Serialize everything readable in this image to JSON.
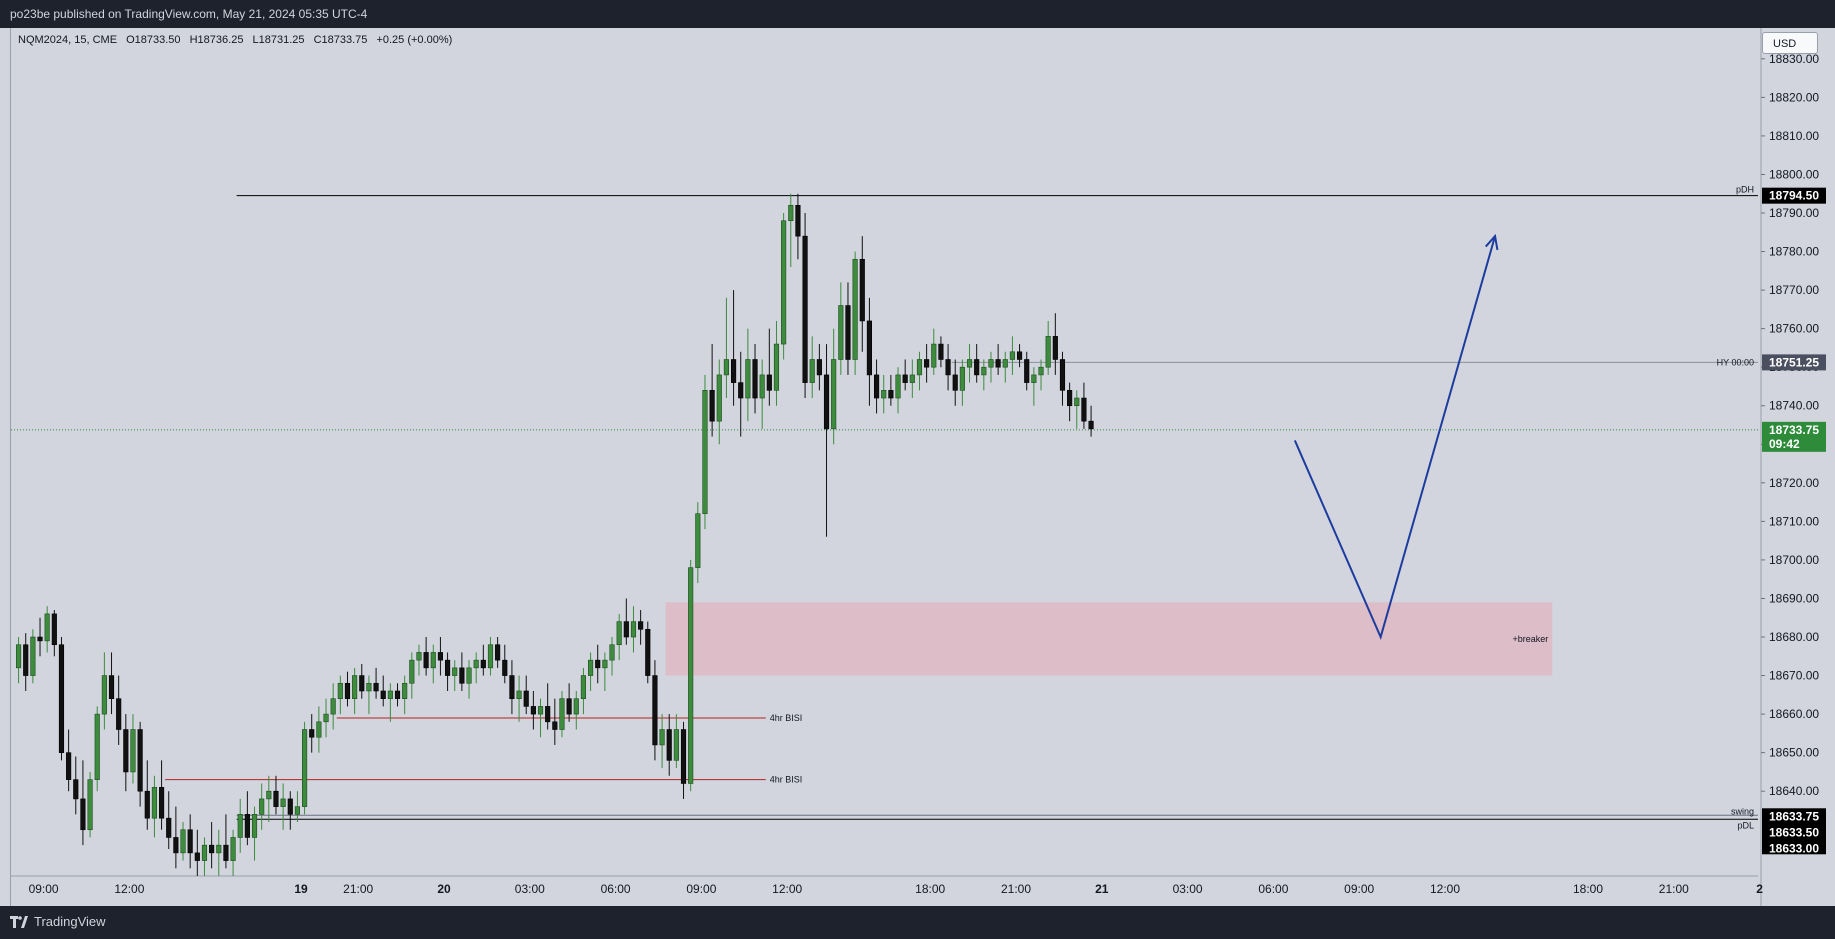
{
  "header": {
    "publish_text": "po23be published on TradingView.com, May 21, 2024 05:35 UTC-4"
  },
  "legend": {
    "symbol": "NQM2024, 15, CME",
    "open": "O18733.50",
    "high": "H18736.25",
    "low": "L18731.25",
    "close": "C18733.75",
    "change": "+0.25 (+0.00%)"
  },
  "currency_button": "USD",
  "footer": {
    "brand": "TradingView"
  },
  "colors": {
    "up": "#3d8b3d",
    "down": "#111111",
    "zone": "#e5a9b4",
    "arrow": "#1d3c9e",
    "midnight": "#7b9cf0",
    "last": "#2e8b3a",
    "level": "#b22222"
  },
  "chart_data": {
    "type": "candlestick",
    "symbol": "NQM2024",
    "interval": "15",
    "ylim": [
      18618,
      18838
    ],
    "y_ticks": [
      18640,
      18650,
      18660,
      18670,
      18680,
      18690,
      18700,
      18710,
      18720,
      18730,
      18740,
      18750,
      18760,
      18770,
      18780,
      18790,
      18800,
      18810,
      18820,
      18830
    ],
    "x_ticks": [
      {
        "label": "09:00",
        "bar": 4
      },
      {
        "label": "12:00",
        "bar": 16
      },
      {
        "label": "19",
        "bar": 40
      },
      {
        "label": "21:00",
        "bar": 48
      },
      {
        "label": "20",
        "bar": 60
      },
      {
        "label": "03:00",
        "bar": 72
      },
      {
        "label": "06:00",
        "bar": 84
      },
      {
        "label": "09:00",
        "bar": 96
      },
      {
        "label": "12:00",
        "bar": 108
      },
      {
        "label": "18:00",
        "bar": 128
      },
      {
        "label": "21:00",
        "bar": 140
      },
      {
        "label": "21",
        "bar": 152
      },
      {
        "label": "03:00",
        "bar": 164
      },
      {
        "label": "06:00",
        "bar": 176
      },
      {
        "label": "09:00",
        "bar": 188
      },
      {
        "label": "12:00",
        "bar": 200
      },
      {
        "label": "18:00",
        "bar": 220
      },
      {
        "label": "21:00",
        "bar": 232
      },
      {
        "label": "2",
        "bar": 244
      }
    ],
    "candles": [
      [
        18672,
        18680,
        18668,
        18678
      ],
      [
        18678,
        18681,
        18666,
        18670
      ],
      [
        18670,
        18682,
        18668,
        18680
      ],
      [
        18680,
        18685,
        18675,
        18679
      ],
      [
        18679,
        18688,
        18676,
        18686
      ],
      [
        18686,
        18687,
        18675,
        18678
      ],
      [
        18678,
        18680,
        18648,
        18650
      ],
      [
        18650,
        18656,
        18640,
        18643
      ],
      [
        18643,
        18649,
        18634,
        18638
      ],
      [
        18638,
        18648,
        18626,
        18630
      ],
      [
        18630,
        18645,
        18628,
        18643
      ],
      [
        18643,
        18662,
        18640,
        18660
      ],
      [
        18660,
        18676,
        18656,
        18670
      ],
      [
        18670,
        18676,
        18660,
        18664
      ],
      [
        18664,
        18670,
        18652,
        18656
      ],
      [
        18656,
        18660,
        18640,
        18645
      ],
      [
        18645,
        18660,
        18642,
        18656
      ],
      [
        18656,
        18658,
        18636,
        18640
      ],
      [
        18640,
        18648,
        18630,
        18633
      ],
      [
        18633,
        18644,
        18628,
        18641
      ],
      [
        18641,
        18648,
        18630,
        18633
      ],
      [
        18633,
        18640,
        18625,
        18628
      ],
      [
        18628,
        18636,
        18620,
        18624
      ],
      [
        18624,
        18632,
        18622,
        18630
      ],
      [
        18630,
        18634,
        18620,
        18624
      ],
      [
        18624,
        18630,
        18618,
        18622
      ],
      [
        18622,
        18628,
        18618,
        18626
      ],
      [
        18626,
        18632,
        18620,
        18624
      ],
      [
        18624,
        18630,
        18618,
        18626
      ],
      [
        18626,
        18634,
        18620,
        18622
      ],
      [
        18622,
        18630,
        18618,
        18628
      ],
      [
        18628,
        18638,
        18624,
        18634
      ],
      [
        18634,
        18640,
        18626,
        18628
      ],
      [
        18628,
        18636,
        18622,
        18634
      ],
      [
        18634,
        18642,
        18630,
        18638
      ],
      [
        18638,
        18644,
        18632,
        18640
      ],
      [
        18640,
        18644,
        18634,
        18636
      ],
      [
        18636,
        18642,
        18630,
        18638
      ],
      [
        18638,
        18640,
        18630,
        18634
      ],
      [
        18634,
        18640,
        18632,
        18636
      ],
      [
        18636,
        18658,
        18634,
        18656
      ],
      [
        18656,
        18660,
        18650,
        18654
      ],
      [
        18654,
        18662,
        18650,
        18658
      ],
      [
        18658,
        18664,
        18654,
        18660
      ],
      [
        18660,
        18668,
        18656,
        18664
      ],
      [
        18664,
        18670,
        18660,
        18668
      ],
      [
        18668,
        18671,
        18662,
        18664
      ],
      [
        18664,
        18672,
        18660,
        18670
      ],
      [
        18670,
        18673,
        18664,
        18666
      ],
      [
        18666,
        18670,
        18660,
        18668
      ],
      [
        18668,
        18672,
        18664,
        18666
      ],
      [
        18666,
        18670,
        18662,
        18664
      ],
      [
        18664,
        18668,
        18658,
        18666
      ],
      [
        18666,
        18668,
        18662,
        18664
      ],
      [
        18664,
        18670,
        18660,
        18668
      ],
      [
        18668,
        18676,
        18664,
        18674
      ],
      [
        18674,
        18678,
        18670,
        18676
      ],
      [
        18676,
        18680,
        18670,
        18672
      ],
      [
        18672,
        18678,
        18668,
        18676
      ],
      [
        18676,
        18680,
        18670,
        18674
      ],
      [
        18674,
        18676,
        18666,
        18670
      ],
      [
        18670,
        18674,
        18666,
        18672
      ],
      [
        18672,
        18676,
        18666,
        18668
      ],
      [
        18668,
        18674,
        18664,
        18672
      ],
      [
        18672,
        18676,
        18668,
        18674
      ],
      [
        18674,
        18678,
        18670,
        18672
      ],
      [
        18672,
        18680,
        18670,
        18678
      ],
      [
        18678,
        18680,
        18672,
        18674
      ],
      [
        18674,
        18678,
        18668,
        18670
      ],
      [
        18670,
        18674,
        18660,
        18664
      ],
      [
        18664,
        18670,
        18658,
        18666
      ],
      [
        18666,
        18670,
        18660,
        18662
      ],
      [
        18662,
        18666,
        18656,
        18660
      ],
      [
        18660,
        18664,
        18654,
        18662
      ],
      [
        18662,
        18668,
        18656,
        18658
      ],
      [
        18658,
        18664,
        18652,
        18656
      ],
      [
        18656,
        18666,
        18654,
        18664
      ],
      [
        18664,
        18668,
        18658,
        18660
      ],
      [
        18660,
        18666,
        18656,
        18664
      ],
      [
        18664,
        18672,
        18660,
        18670
      ],
      [
        18670,
        18676,
        18666,
        18674
      ],
      [
        18674,
        18678,
        18668,
        18672
      ],
      [
        18672,
        18676,
        18666,
        18674
      ],
      [
        18674,
        18680,
        18670,
        18678
      ],
      [
        18678,
        18686,
        18674,
        18684
      ],
      [
        18684,
        18690,
        18678,
        18680
      ],
      [
        18680,
        18688,
        18676,
        18684
      ],
      [
        18684,
        18687,
        18678,
        18682
      ],
      [
        18682,
        18684,
        18668,
        18670
      ],
      [
        18670,
        18674,
        18648,
        18652
      ],
      [
        18652,
        18660,
        18646,
        18656
      ],
      [
        18656,
        18660,
        18644,
        18648
      ],
      [
        18648,
        18660,
        18646,
        18656
      ],
      [
        18656,
        18658,
        18638,
        18642
      ],
      [
        18642,
        18700,
        18640,
        18698
      ],
      [
        18698,
        18715,
        18694,
        18712
      ],
      [
        18712,
        18748,
        18708,
        18744
      ],
      [
        18744,
        18756,
        18732,
        18736
      ],
      [
        18736,
        18752,
        18730,
        18748
      ],
      [
        18748,
        18768,
        18742,
        18752
      ],
      [
        18752,
        18770,
        18740,
        18746
      ],
      [
        18746,
        18754,
        18732,
        18742
      ],
      [
        18742,
        18760,
        18736,
        18752
      ],
      [
        18752,
        18756,
        18738,
        18742
      ],
      [
        18742,
        18752,
        18734,
        18748
      ],
      [
        18748,
        18760,
        18740,
        18744
      ],
      [
        18744,
        18762,
        18740,
        18756
      ],
      [
        18756,
        18790,
        18752,
        18788
      ],
      [
        18788,
        18795,
        18776,
        18792
      ],
      [
        18792,
        18795,
        18778,
        18784
      ],
      [
        18784,
        18790,
        18742,
        18746
      ],
      [
        18746,
        18758,
        18742,
        18752
      ],
      [
        18752,
        18756,
        18744,
        18748
      ],
      [
        18748,
        18756,
        18706,
        18734
      ],
      [
        18734,
        18760,
        18730,
        18752
      ],
      [
        18752,
        18772,
        18748,
        18766
      ],
      [
        18766,
        18772,
        18748,
        18752
      ],
      [
        18752,
        18780,
        18748,
        18778
      ],
      [
        18778,
        18784,
        18754,
        18762
      ],
      [
        18762,
        18768,
        18740,
        18748
      ],
      [
        18748,
        18752,
        18738,
        18742
      ],
      [
        18742,
        18748,
        18738,
        18744
      ],
      [
        18744,
        18748,
        18740,
        18742
      ],
      [
        18742,
        18750,
        18738,
        18748
      ],
      [
        18748,
        18752,
        18744,
        18746
      ],
      [
        18746,
        18752,
        18742,
        18748
      ],
      [
        18748,
        18754,
        18744,
        18752
      ],
      [
        18752,
        18756,
        18746,
        18750
      ],
      [
        18750,
        18760,
        18748,
        18756
      ],
      [
        18756,
        18758,
        18750,
        18752
      ],
      [
        18752,
        18756,
        18744,
        18748
      ],
      [
        18748,
        18752,
        18740,
        18744
      ],
      [
        18744,
        18752,
        18740,
        18750
      ],
      [
        18750,
        18756,
        18746,
        18752
      ],
      [
        18752,
        18756,
        18746,
        18748
      ],
      [
        18748,
        18752,
        18744,
        18750
      ],
      [
        18750,
        18754,
        18746,
        18752
      ],
      [
        18752,
        18756,
        18748,
        18750
      ],
      [
        18750,
        18754,
        18746,
        18752
      ],
      [
        18752,
        18758,
        18748,
        18754
      ],
      [
        18754,
        18756,
        18750,
        18752
      ],
      [
        18752,
        18754,
        18744,
        18746
      ],
      [
        18746,
        18750,
        18740,
        18748
      ],
      [
        18748,
        18752,
        18744,
        18750
      ],
      [
        18750,
        18762,
        18748,
        18758
      ],
      [
        18758,
        18764,
        18748,
        18752
      ],
      [
        18752,
        18754,
        18740,
        18744
      ],
      [
        18744,
        18746,
        18736,
        18740
      ],
      [
        18740,
        18744,
        18734,
        18742
      ],
      [
        18742,
        18746,
        18734,
        18736
      ],
      [
        18736,
        18740,
        18732,
        18734
      ]
    ],
    "annotations": {
      "pDH": {
        "label": "pDH",
        "price": 18794.5,
        "tag": "18794.50"
      },
      "midnight_open": {
        "label": "HY 00:00",
        "price": 18751.25,
        "tag": "18751.25"
      },
      "last_price": {
        "price": 18733.75,
        "tag": "18733.75",
        "countdown": "09:42"
      },
      "swing": {
        "label": "swing",
        "price": 18633.75,
        "tag": "18633.75"
      },
      "pDL": {
        "label": "pDL",
        "price": 18633.5,
        "tag": "18633.50"
      },
      "low_tag": {
        "tag": "18633.00"
      },
      "bisi_1": {
        "label": "4hr BISI",
        "price": 18659
      },
      "bisi_2": {
        "label": "4hr BISI",
        "price": 18643
      },
      "breaker": {
        "label": "+breaker",
        "top": 18689,
        "bottom": 18670,
        "from_bar": 91,
        "to_bar": 215
      },
      "projection": [
        [
          179,
          18731
        ],
        [
          191,
          18680
        ],
        [
          207,
          18784
        ]
      ]
    }
  }
}
